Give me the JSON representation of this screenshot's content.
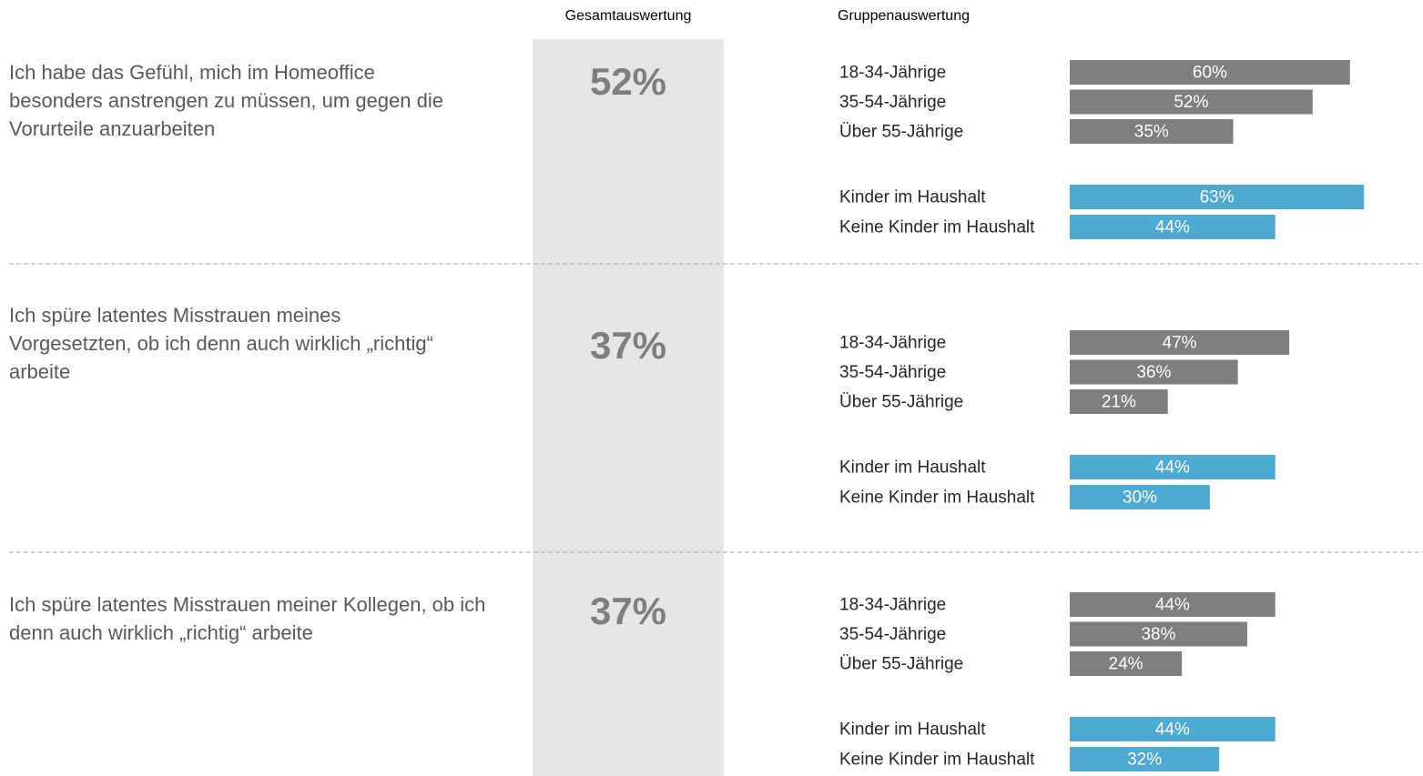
{
  "header": {
    "total_heading": "Gesamtauswertung",
    "group_heading": "Gruppenauswertung"
  },
  "chart_data": [
    {
      "type": "bar",
      "title": "Ich habe das Gefühl, mich im Homeoffice besonders anstrengen zu müssen, um gegen die Vorurteile anzuarbeiten",
      "total": {
        "value": 52,
        "label": "52%"
      },
      "categories": [
        "18-34-Jährige",
        "35-54-Jährige",
        "Über 55-Jährige",
        "Kinder im Haushalt",
        "Keine Kinder im Haushalt"
      ],
      "values": [
        60,
        52,
        35,
        63,
        44
      ],
      "value_labels": [
        "60%",
        "52%",
        "35%",
        "63%",
        "44%"
      ],
      "colors": [
        "#7f7f7f",
        "#7f7f7f",
        "#7f7f7f",
        "#4faad2",
        "#4faad2"
      ]
    },
    {
      "type": "bar",
      "title": "Ich spüre latentes Misstrauen meines Vorgesetzten, ob ich denn auch wirklich „richtig“ arbeite",
      "total": {
        "value": 37,
        "label": "37%"
      },
      "categories": [
        "18-34-Jährige",
        "35-54-Jährige",
        "Über 55-Jährige",
        "Kinder im Haushalt",
        "Keine Kinder im Haushalt"
      ],
      "values": [
        47,
        36,
        21,
        44,
        30
      ],
      "value_labels": [
        "47%",
        "36%",
        "21%",
        "44%",
        "30%"
      ],
      "colors": [
        "#7f7f7f",
        "#7f7f7f",
        "#7f7f7f",
        "#4faad2",
        "#4faad2"
      ]
    },
    {
      "type": "bar",
      "title": "Ich spüre latentes Misstrauen meiner Kollegen, ob ich denn auch wirklich „richtig“ arbeite",
      "total": {
        "value": 37,
        "label": "37%"
      },
      "categories": [
        "18-34-Jährige",
        "35-54-Jährige",
        "Über 55-Jährige",
        "Kinder im Haushalt",
        "Keine Kinder im Haushalt"
      ],
      "values": [
        44,
        38,
        24,
        44,
        32
      ],
      "value_labels": [
        "44%",
        "38%",
        "24%",
        "44%",
        "32%"
      ],
      "colors": [
        "#7f7f7f",
        "#7f7f7f",
        "#7f7f7f",
        "#4faad2",
        "#4faad2"
      ]
    }
  ]
}
